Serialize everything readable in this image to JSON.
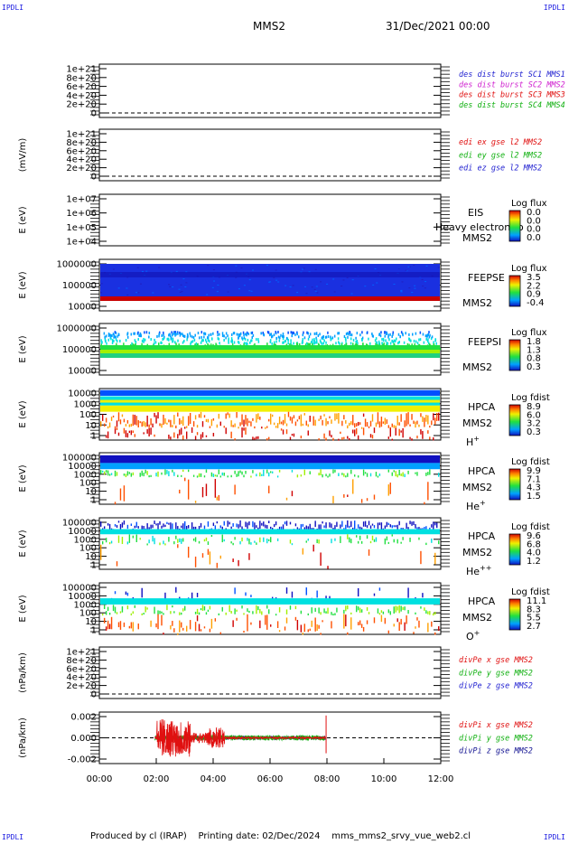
{
  "corners": {
    "tl": "IPDLI",
    "tr": "IPDLI",
    "bl": "IPDLI",
    "br": "IPDLI"
  },
  "header": {
    "mission": "MMS2",
    "datetime": "31/Dec/2021 00:00"
  },
  "footer": {
    "produced_by": "Produced by cl (IRAP)",
    "printing_date": "Printing date: 02/Dec/2024",
    "file": "mms_mms2_srvy_vue_web2.cl"
  },
  "colors": {
    "blue": "#1f1fd0",
    "magenta": "#d020d0",
    "red": "#e01010",
    "green": "#10b010",
    "navy": "#101090"
  },
  "chart_data": [
    {
      "type": "line",
      "ylabel": "",
      "ylim": [
        0,
        1e+21
      ],
      "ticks": [
        "1e+21",
        "8e+20",
        "6e+20",
        "4e+20",
        "2e+20",
        "0"
      ],
      "series": [
        {
          "name": "des dist burst SC1 MMS1",
          "color": "#1f1fd0"
        },
        {
          "name": "des dist burst SC2 MMS2",
          "color": "#d020d0"
        },
        {
          "name": "des dist burst SC3 MMS3",
          "color": "#e01010"
        },
        {
          "name": "des dist burst SC4 MMS4",
          "color": "#10b010"
        }
      ]
    },
    {
      "type": "line",
      "ylabel": "(mV/m)",
      "ylim": [
        0,
        1e+21
      ],
      "ticks": [
        "1e+21",
        "8e+20",
        "6e+20",
        "4e+20",
        "2e+20",
        "0"
      ],
      "series": [
        {
          "name": "edi ex gse l2 MMS2",
          "color": "#e01010"
        },
        {
          "name": "edi ey gse l2 MMS2",
          "color": "#10b010"
        },
        {
          "name": "edi ez gse l2 MMS2",
          "color": "#1f1fd0"
        }
      ]
    },
    {
      "type": "heatmap",
      "ylabel": "E (eV)",
      "ticks": [
        "1e+07",
        "1e+06",
        "1e+05",
        "1e+04"
      ],
      "labels": [
        "EIS",
        "MMS2"
      ],
      "overlay": "Heavy electron to",
      "colorbar": {
        "title": "Log flux",
        "values": [
          "0.0",
          "0.0",
          "0.0",
          "0.0"
        ]
      }
    },
    {
      "type": "heatmap",
      "ylabel": "E (eV)",
      "ticks": [
        "1000000",
        "100000",
        "10000"
      ],
      "labels": [
        "FEEPSE",
        "MMS2"
      ],
      "colorbar": {
        "title": "Log flux",
        "values": [
          "3.5",
          "2.2",
          "0.9",
          "-0.4"
        ]
      }
    },
    {
      "type": "heatmap",
      "ylabel": "E (eV)",
      "ticks": [
        "1000000",
        "100000",
        "10000"
      ],
      "labels": [
        "FEEPSI",
        "MMS2"
      ],
      "colorbar": {
        "title": "Log flux",
        "values": [
          "1.8",
          "1.3",
          "0.8",
          "0.3"
        ]
      }
    },
    {
      "type": "heatmap",
      "ylabel": "E (eV)",
      "ticks": [
        "10000",
        "1000",
        "100",
        "10",
        "1"
      ],
      "labels": [
        "HPCA",
        "MMS2"
      ],
      "species": "H",
      "charge": "+",
      "colorbar": {
        "title": "Log fdist",
        "values": [
          "8.9",
          "6.0",
          "3.2",
          "0.3"
        ]
      }
    },
    {
      "type": "heatmap",
      "ylabel": "E (eV)",
      "ticks": [
        "100000",
        "10000",
        "1000",
        "100",
        "10",
        "1"
      ],
      "labels": [
        "HPCA",
        "MMS2"
      ],
      "species": "He",
      "charge": "+",
      "colorbar": {
        "title": "Log fdist",
        "values": [
          "9.9",
          "7.1",
          "4.3",
          "1.5"
        ]
      }
    },
    {
      "type": "heatmap",
      "ylabel": "E (eV)",
      "ticks": [
        "100000",
        "10000",
        "1000",
        "100",
        "10",
        "1"
      ],
      "labels": [
        "HPCA",
        "MMS2"
      ],
      "species": "He",
      "charge": "++",
      "colorbar": {
        "title": "Log fdist",
        "values": [
          "9.6",
          "6.8",
          "4.0",
          "1.2"
        ]
      }
    },
    {
      "type": "heatmap",
      "ylabel": "E (eV)",
      "ticks": [
        "100000",
        "10000",
        "1000",
        "100",
        "10",
        "1"
      ],
      "labels": [
        "HPCA",
        "MMS2"
      ],
      "species": "O",
      "charge": "+",
      "colorbar": {
        "title": "Log fdist",
        "values": [
          "11.1",
          "8.3",
          "5.5",
          "2.7"
        ]
      }
    },
    {
      "type": "line",
      "ylabel": "(nPa/km)",
      "ylim": [
        0,
        1e+21
      ],
      "ticks": [
        "1e+21",
        "8e+20",
        "6e+20",
        "4e+20",
        "2e+20",
        "0"
      ],
      "series": [
        {
          "name": "divPe x gse MMS2",
          "color": "#e01010"
        },
        {
          "name": "divPe y gse MMS2",
          "color": "#10b010"
        },
        {
          "name": "divPe z gse MMS2",
          "color": "#1f1fd0"
        }
      ]
    },
    {
      "type": "line",
      "ylabel": "(nPa/km)",
      "ylim": [
        -0.003,
        0.003
      ],
      "ticks": [
        "0.002",
        "0.000",
        "-0.002"
      ],
      "series": [
        {
          "name": "divPi x gse MMS2",
          "color": "#e01010"
        },
        {
          "name": "divPi y gse MMS2",
          "color": "#10b010"
        },
        {
          "name": "divPi z gse MMS2",
          "color": "#101090"
        }
      ]
    }
  ],
  "xaxis": {
    "ticks": [
      "00:00",
      "02:00",
      "04:00",
      "06:00",
      "08:00",
      "10:00",
      "12:00"
    ],
    "range_hours": [
      0,
      12
    ]
  }
}
